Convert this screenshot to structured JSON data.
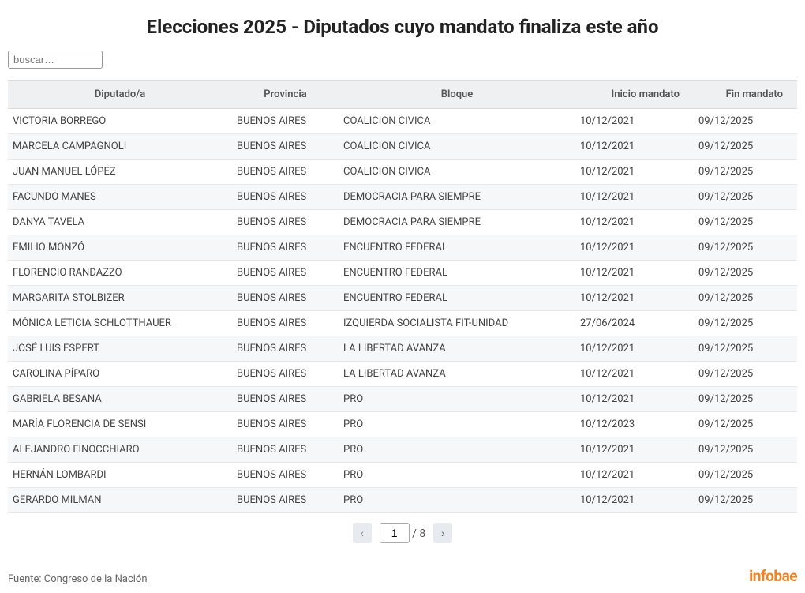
{
  "title": "Elecciones 2025 - Diputados cuyo mandato finaliza este año",
  "search": {
    "placeholder": "buscar…",
    "value": ""
  },
  "columns": {
    "dip": "Diputado/a",
    "prov": "Provincia",
    "bloque": "Bloque",
    "inicio": "Inicio mandato",
    "fin": "Fin mandato"
  },
  "rows": [
    {
      "dip": "VICTORIA BORREGO",
      "prov": "BUENOS AIRES",
      "bloque": "COALICION CIVICA",
      "inicio": "10/12/2021",
      "fin": "09/12/2025"
    },
    {
      "dip": "MARCELA CAMPAGNOLI",
      "prov": "BUENOS AIRES",
      "bloque": "COALICION CIVICA",
      "inicio": "10/12/2021",
      "fin": "09/12/2025"
    },
    {
      "dip": "JUAN MANUEL LÓPEZ",
      "prov": "BUENOS AIRES",
      "bloque": "COALICION CIVICA",
      "inicio": "10/12/2021",
      "fin": "09/12/2025"
    },
    {
      "dip": "FACUNDO MANES",
      "prov": "BUENOS AIRES",
      "bloque": "DEMOCRACIA PARA SIEMPRE",
      "inicio": "10/12/2021",
      "fin": "09/12/2025"
    },
    {
      "dip": "DANYA TAVELA",
      "prov": "BUENOS AIRES",
      "bloque": "DEMOCRACIA PARA SIEMPRE",
      "inicio": "10/12/2021",
      "fin": "09/12/2025"
    },
    {
      "dip": "EMILIO MONZÓ",
      "prov": "BUENOS AIRES",
      "bloque": "ENCUENTRO FEDERAL",
      "inicio": "10/12/2021",
      "fin": "09/12/2025"
    },
    {
      "dip": "FLORENCIO RANDAZZO",
      "prov": "BUENOS AIRES",
      "bloque": "ENCUENTRO FEDERAL",
      "inicio": "10/12/2021",
      "fin": "09/12/2025"
    },
    {
      "dip": "MARGARITA STOLBIZER",
      "prov": "BUENOS AIRES",
      "bloque": "ENCUENTRO FEDERAL",
      "inicio": "10/12/2021",
      "fin": "09/12/2025"
    },
    {
      "dip": "MÓNICA LETICIA SCHLOTTHAUER",
      "prov": "BUENOS AIRES",
      "bloque": "IZQUIERDA SOCIALISTA FIT-UNIDAD",
      "inicio": "27/06/2024",
      "fin": "09/12/2025"
    },
    {
      "dip": "JOSÉ LUIS ESPERT",
      "prov": "BUENOS AIRES",
      "bloque": "LA LIBERTAD AVANZA",
      "inicio": "10/12/2021",
      "fin": "09/12/2025"
    },
    {
      "dip": "CAROLINA PÍPARO",
      "prov": "BUENOS AIRES",
      "bloque": "LA LIBERTAD AVANZA",
      "inicio": "10/12/2021",
      "fin": "09/12/2025"
    },
    {
      "dip": "GABRIELA BESANA",
      "prov": "BUENOS AIRES",
      "bloque": "PRO",
      "inicio": "10/12/2021",
      "fin": "09/12/2025"
    },
    {
      "dip": "MARÍA FLORENCIA DE SENSI",
      "prov": "BUENOS AIRES",
      "bloque": "PRO",
      "inicio": "10/12/2023",
      "fin": "09/12/2025"
    },
    {
      "dip": "ALEJANDRO FINOCCHIARO",
      "prov": "BUENOS AIRES",
      "bloque": "PRO",
      "inicio": "10/12/2021",
      "fin": "09/12/2025"
    },
    {
      "dip": "HERNÁN LOMBARDI",
      "prov": "BUENOS AIRES",
      "bloque": "PRO",
      "inicio": "10/12/2021",
      "fin": "09/12/2025"
    },
    {
      "dip": "GERARDO MILMAN",
      "prov": "BUENOS AIRES",
      "bloque": "PRO",
      "inicio": "10/12/2021",
      "fin": "09/12/2025"
    }
  ],
  "pagination": {
    "prev_glyph": "‹",
    "next_glyph": "›",
    "current": "1",
    "total_display": " / 8"
  },
  "footer": {
    "source": "Fuente: Congreso de la Nación",
    "brand": "infobae"
  },
  "colors": {
    "header_bg": "#eef0f2",
    "row_alt_bg": "#f6f7f8",
    "text": "#444",
    "brand": "#f58220"
  }
}
